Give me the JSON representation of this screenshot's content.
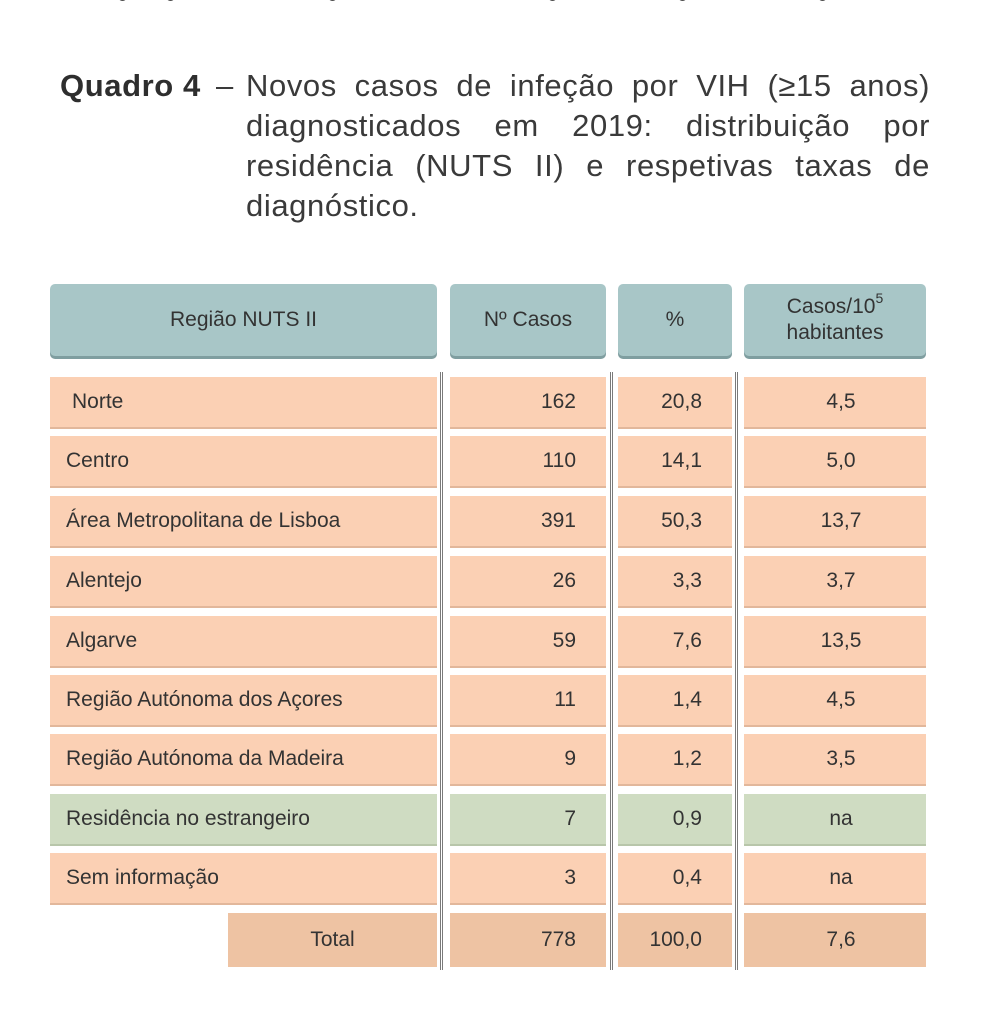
{
  "caption": {
    "label": "Quadro 4",
    "dash": "–",
    "text": "Novos casos de infeção por VIH (≥15 anos) diagnosticados em 2019: distribuição por residência (NUTS II) e respetivas taxas de diagnóstico."
  },
  "table": {
    "headers": {
      "region": "Região NUTS II",
      "cases": "Nº Casos",
      "percent": "%",
      "rate": "Casos/10",
      "rate_sup": "5",
      "rate_line2": "habitantes"
    },
    "rows": [
      {
        "region": "Norte",
        "cases": "162",
        "percent": "20,8",
        "rate": "4,5"
      },
      {
        "region": "Centro",
        "cases": "110",
        "percent": "14,1",
        "rate": "5,0"
      },
      {
        "region": "Área Metropolitana de Lisboa",
        "cases": "391",
        "percent": "50,3",
        "rate": "13,7"
      },
      {
        "region": "Alentejo",
        "cases": "26",
        "percent": "3,3",
        "rate": "3,7"
      },
      {
        "region": "Algarve",
        "cases": "59",
        "percent": "7,6",
        "rate": "13,5"
      },
      {
        "region": "Região Autónoma dos Açores",
        "cases": "11",
        "percent": "1,4",
        "rate": "4,5"
      },
      {
        "region": "Região Autónoma da Madeira",
        "cases": "9",
        "percent": "1,2",
        "rate": "3,5"
      },
      {
        "region": "Residência no estrangeiro",
        "cases": "7",
        "percent": "0,9",
        "rate": "na"
      },
      {
        "region": "Sem informação",
        "cases": "3",
        "percent": "0,4",
        "rate": "na"
      }
    ],
    "total": {
      "label": "Total",
      "cases": "778",
      "percent": "100,0",
      "rate": "7,6"
    },
    "colors": {
      "header": "#a8c6c7",
      "row": "#fbd0b4",
      "foreign_row": "#cfdcc2",
      "total_row": "#eec3a3"
    }
  }
}
